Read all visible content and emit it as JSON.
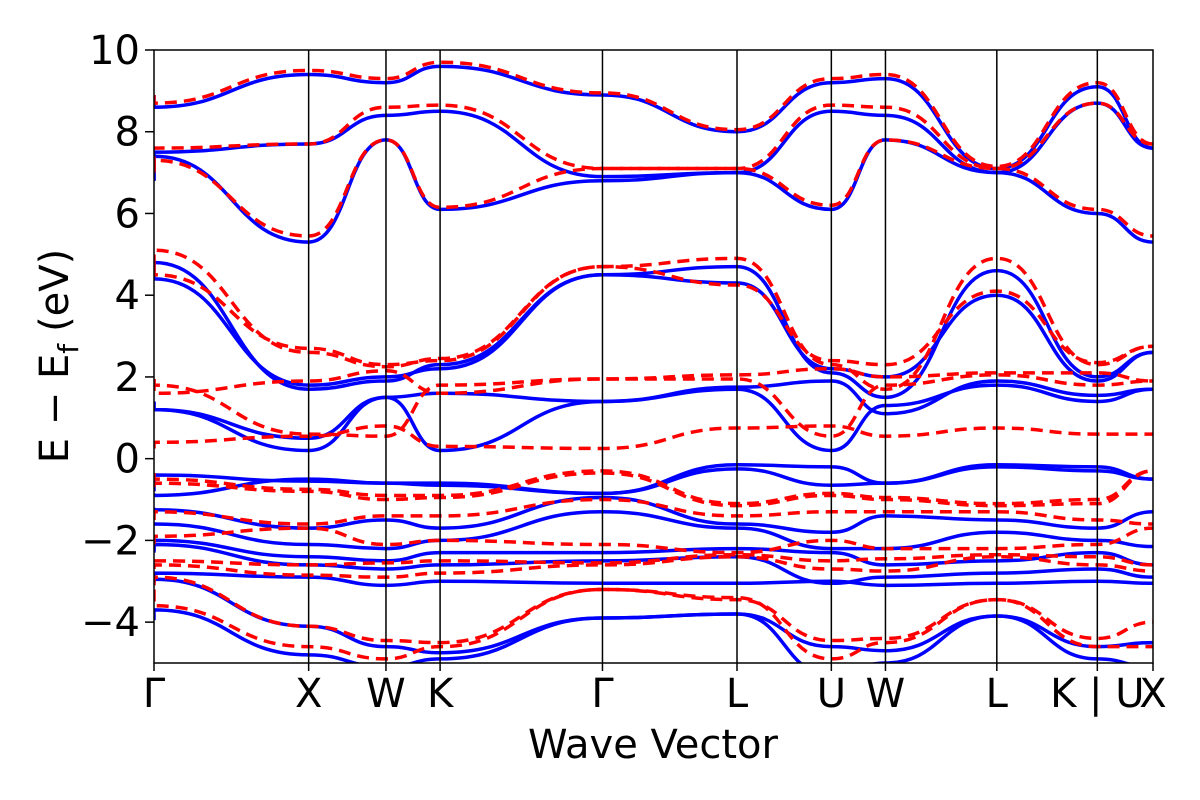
{
  "chart_data": {
    "type": "line",
    "title": "",
    "xlabel": "Wave Vector",
    "ylabel_main": "E − E",
    "ylabel_sub": "f",
    "ylabel_unit": "(eV)",
    "ylim": [
      -5,
      10
    ],
    "yticks": [
      -4,
      -2,
      0,
      2,
      4,
      6,
      8,
      10
    ],
    "ytick_labels": [
      "−4",
      "−2",
      "0",
      "2",
      "4",
      "6",
      "8",
      "10"
    ],
    "grid": false,
    "legend": "none",
    "kpath": {
      "x_range": [
        0,
        6.46
      ],
      "points": [
        {
          "label": "Γ",
          "x": 0.0
        },
        {
          "label": "X",
          "x": 1.0
        },
        {
          "label": "W",
          "x": 1.5
        },
        {
          "label": "K",
          "x": 1.85
        },
        {
          "label": "Γ",
          "x": 2.9
        },
        {
          "label": "L",
          "x": 3.77
        },
        {
          "label": "U",
          "x": 4.38
        },
        {
          "label": "W",
          "x": 4.73
        },
        {
          "label": "L",
          "x": 5.45
        },
        {
          "label": "K | U",
          "x": 6.1
        },
        {
          "label": "X",
          "x": 6.46
        }
      ]
    },
    "series_style": [
      {
        "color": "#0000ff",
        "dash": "none"
      },
      {
        "color": "#ff0000",
        "dash": "12,7"
      }
    ],
    "series": [
      {
        "bands": [
          [
            -3.95,
            -3.7,
            -4.8,
            -5.1,
            -4.9,
            -3.9,
            -3.8,
            -5.3,
            -5.0,
            -3.85,
            -4.9,
            -5.1
          ],
          [
            -3.05,
            -2.95,
            -4.1,
            -4.6,
            -4.75,
            -3.9,
            -3.8,
            -4.6,
            -4.7,
            -3.85,
            -4.6,
            -4.5
          ],
          [
            -3.0,
            -2.8,
            -2.9,
            -3.1,
            -3.0,
            -3.05,
            -3.05,
            -3.0,
            -3.1,
            -3.05,
            -3.0,
            -3.05
          ],
          [
            -2.3,
            -2.1,
            -2.6,
            -2.7,
            -2.6,
            -2.5,
            -2.4,
            -3.05,
            -2.9,
            -2.8,
            -2.7,
            -2.9
          ],
          [
            -2.25,
            -2.0,
            -2.4,
            -2.5,
            -2.3,
            -2.3,
            -2.2,
            -2.3,
            -2.6,
            -2.5,
            -2.3,
            -2.6
          ],
          [
            -1.6,
            -1.6,
            -2.1,
            -2.2,
            -2.0,
            -1.3,
            -1.7,
            -2.2,
            -2.2,
            -1.8,
            -2.0,
            -2.15
          ],
          [
            -1.2,
            -1.25,
            -1.7,
            -1.5,
            -1.7,
            -0.95,
            -1.6,
            -1.8,
            -1.4,
            -1.5,
            -1.7,
            -1.3
          ],
          [
            -0.85,
            -0.9,
            -0.5,
            -0.6,
            -0.65,
            -0.85,
            -0.25,
            -0.65,
            -0.6,
            -0.2,
            -0.3,
            -0.5
          ],
          [
            -0.8,
            -0.4,
            -0.55,
            -0.6,
            -0.6,
            -0.85,
            -0.15,
            -0.2,
            -0.6,
            -0.15,
            -0.2,
            -0.5
          ],
          [
            1.4,
            1.2,
            0.2,
            1.5,
            0.2,
            1.4,
            1.7,
            0.2,
            1.3,
            1.8,
            1.4,
            1.7
          ],
          [
            1.4,
            1.2,
            0.5,
            1.5,
            1.6,
            1.4,
            1.75,
            1.9,
            1.1,
            1.9,
            1.55,
            1.7
          ],
          [
            4.5,
            4.4,
            1.8,
            2.0,
            2.2,
            4.5,
            4.7,
            2.1,
            1.5,
            4.6,
            2.0,
            2.6
          ],
          [
            4.5,
            4.8,
            1.7,
            1.9,
            2.3,
            4.5,
            4.3,
            2.2,
            2.0,
            4.0,
            1.9,
            2.6
          ],
          [
            6.8,
            7.4,
            5.3,
            7.8,
            6.1,
            6.8,
            7.0,
            6.1,
            7.8,
            7.0,
            6.0,
            5.3
          ],
          [
            6.8,
            7.5,
            7.7,
            8.4,
            8.5,
            6.9,
            7.0,
            8.5,
            8.4,
            7.0,
            8.7,
            7.6
          ],
          [
            8.9,
            8.6,
            9.4,
            9.2,
            9.6,
            8.9,
            8.0,
            9.2,
            9.3,
            7.1,
            9.1,
            7.6
          ]
        ]
      },
      {
        "bands": [
          [
            -3.2,
            -3.6,
            -4.6,
            -4.9,
            -4.6,
            -3.2,
            -3.4,
            -4.9,
            -4.5,
            -3.45,
            -4.6,
            -4.6
          ],
          [
            -3.1,
            -2.9,
            -4.1,
            -4.45,
            -4.5,
            -3.2,
            -3.45,
            -4.45,
            -4.4,
            -3.45,
            -4.4,
            -4.0
          ],
          [
            -2.7,
            -2.6,
            -2.85,
            -2.9,
            -2.8,
            -2.6,
            -2.4,
            -2.7,
            -2.75,
            -2.4,
            -2.6,
            -2.75
          ],
          [
            -2.5,
            -2.5,
            -2.6,
            -2.55,
            -2.5,
            -2.55,
            -2.35,
            -2.5,
            -2.45,
            -2.35,
            -2.4,
            -2.6
          ],
          [
            -2.1,
            -1.9,
            -1.7,
            -2.1,
            -2.0,
            -2.1,
            -2.3,
            -2.0,
            -2.2,
            -2.2,
            -2.1,
            -1.7
          ],
          [
            -1.5,
            -1.3,
            -1.6,
            -1.4,
            -1.4,
            -1.0,
            -1.4,
            -1.3,
            -1.3,
            -1.3,
            -1.5,
            -1.6
          ],
          [
            -0.7,
            -0.6,
            -0.8,
            -1.0,
            -0.95,
            -0.35,
            -1.15,
            -0.9,
            -1.0,
            -1.15,
            -1.1,
            -0.3
          ],
          [
            -0.35,
            -0.5,
            -0.75,
            -0.9,
            -0.9,
            -0.3,
            -1.1,
            -0.85,
            -0.95,
            -1.1,
            -1.0,
            -0.3
          ],
          [
            0.25,
            0.4,
            0.55,
            0.8,
            0.3,
            0.25,
            0.75,
            0.8,
            0.55,
            0.75,
            0.6,
            0.6
          ],
          [
            1.95,
            1.8,
            0.6,
            0.55,
            1.8,
            1.95,
            1.95,
            0.55,
            1.8,
            2.05,
            1.8,
            1.9
          ],
          [
            1.95,
            1.6,
            1.9,
            2.15,
            1.6,
            1.95,
            2.05,
            2.2,
            2.0,
            2.1,
            2.1,
            1.9
          ],
          [
            4.7,
            4.5,
            2.7,
            2.3,
            2.4,
            4.7,
            4.9,
            2.3,
            1.7,
            4.9,
            2.3,
            2.75
          ],
          [
            4.7,
            5.1,
            2.6,
            2.25,
            2.45,
            4.7,
            4.25,
            2.4,
            2.3,
            4.1,
            2.35,
            2.75
          ],
          [
            7.0,
            7.3,
            5.45,
            7.8,
            6.15,
            7.1,
            7.1,
            6.2,
            7.8,
            7.1,
            6.1,
            5.45
          ],
          [
            7.1,
            7.6,
            7.7,
            8.6,
            8.65,
            7.1,
            7.1,
            8.65,
            8.6,
            7.1,
            8.7,
            7.7
          ],
          [
            8.9,
            8.7,
            9.5,
            9.3,
            9.7,
            8.95,
            8.05,
            9.3,
            9.4,
            7.15,
            9.2,
            7.7
          ]
        ]
      }
    ]
  }
}
